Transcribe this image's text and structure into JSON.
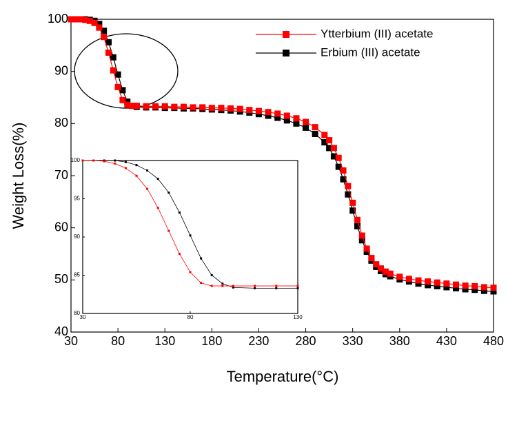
{
  "chart_data": [
    {
      "type": "line",
      "xlabel": "Temperature(°C)",
      "ylabel": "Weight Loss(%)",
      "xlim": [
        30,
        480
      ],
      "xticks": [
        30,
        80,
        130,
        180,
        230,
        280,
        330,
        380,
        430,
        480
      ],
      "ylim": [
        40,
        100
      ],
      "yticks": [
        40,
        50,
        60,
        70,
        80,
        90,
        100
      ],
      "legend": "upper right",
      "x": [
        30,
        35,
        40,
        45,
        50,
        55,
        60,
        65,
        70,
        75,
        80,
        85,
        90,
        95,
        100,
        110,
        120,
        130,
        140,
        150,
        160,
        170,
        180,
        190,
        200,
        210,
        220,
        230,
        240,
        250,
        260,
        270,
        280,
        290,
        300,
        305,
        310,
        315,
        320,
        325,
        330,
        335,
        340,
        345,
        350,
        355,
        360,
        365,
        370,
        380,
        390,
        400,
        410,
        420,
        430,
        440,
        450,
        460,
        470,
        480
      ],
      "series": [
        {
          "name": "Ytterbium (III) acetate",
          "color": "#ff0000",
          "values": [
            100,
            100,
            100,
            99.9,
            99.7,
            99.3,
            98.4,
            96.6,
            93.6,
            90.2,
            87,
            84.5,
            83.6,
            83.4,
            83.4,
            83.3,
            83.3,
            83.3,
            83.2,
            83.2,
            83.1,
            83.1,
            83.0,
            83.0,
            82.9,
            82.8,
            82.6,
            82.4,
            82.2,
            81.9,
            81.5,
            81.0,
            80.3,
            79.3,
            77.8,
            76.8,
            75.3,
            73.4,
            71,
            68,
            64.8,
            61.5,
            58.5,
            56,
            54.2,
            53,
            52.2,
            51.6,
            51.2,
            50.6,
            50.2,
            49.9,
            49.7,
            49.5,
            49.3,
            49.1,
            48.9,
            48.8,
            48.6,
            48.5
          ]
        },
        {
          "name": "Erbium (III) acetate",
          "color": "#000000",
          "values": [
            100,
            100,
            100,
            100,
            99.9,
            99.7,
            99.1,
            97.8,
            95.6,
            92.7,
            89.4,
            86.4,
            84.2,
            83.4,
            83.2,
            83.1,
            83.1,
            83.0,
            83.0,
            82.9,
            82.9,
            82.8,
            82.7,
            82.6,
            82.5,
            82.3,
            82.1,
            81.8,
            81.5,
            81.1,
            80.6,
            80.0,
            79.2,
            78.0,
            76.4,
            75.3,
            73.7,
            71.7,
            69.3,
            66.4,
            63.3,
            60.3,
            57.6,
            55.4,
            53.7,
            52.5,
            51.7,
            51.1,
            50.7,
            50.1,
            49.7,
            49.3,
            49.0,
            48.8,
            48.6,
            48.4,
            48.2,
            48.1,
            47.9,
            47.8
          ]
        }
      ]
    },
    {
      "type": "line",
      "xlim": [
        30,
        130
      ],
      "xticks": [
        30,
        80,
        130
      ],
      "ylim": [
        80,
        100
      ],
      "yticks": [
        80,
        85,
        90,
        95,
        100
      ],
      "x": [
        30,
        35,
        40,
        45,
        50,
        55,
        60,
        65,
        70,
        75,
        80,
        85,
        90,
        95,
        100,
        110,
        120,
        130
      ],
      "series": [
        {
          "color": "#ff0000",
          "values": [
            100,
            100,
            99.9,
            99.6,
            99,
            98,
            96.3,
            93.8,
            90.8,
            87.8,
            85.4,
            84,
            83.6,
            83.6,
            83.6,
            83.6,
            83.6,
            83.6
          ]
        },
        {
          "color": "#000000",
          "values": [
            100,
            100,
            100,
            100,
            99.8,
            99.4,
            98.7,
            97.6,
            95.8,
            93.2,
            90.2,
            87.2,
            85,
            83.9,
            83.4,
            83.3,
            83.3,
            83.3
          ]
        }
      ]
    }
  ]
}
